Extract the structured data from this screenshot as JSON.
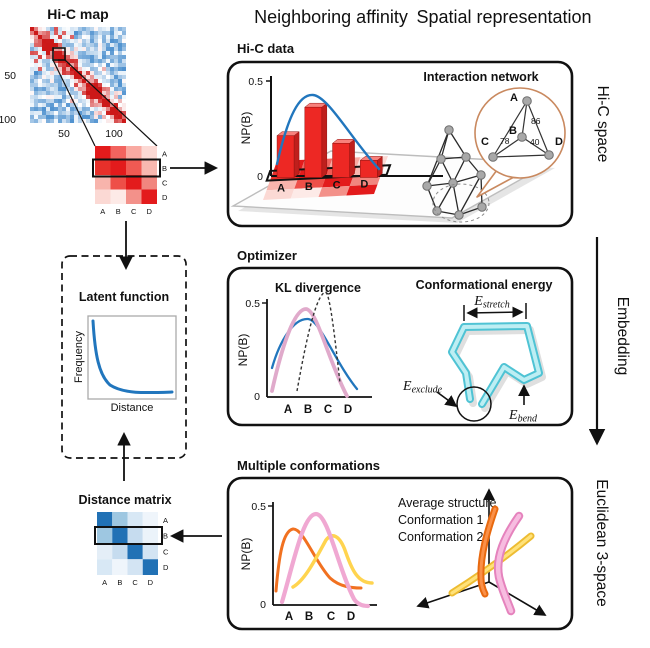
{
  "header": {
    "left": "Neighboring affinity",
    "right": "Spatial representation"
  },
  "side": {
    "top": "Hi-C space",
    "arrow_label": "Embedding",
    "bottom": "Euclidean 3-space"
  },
  "hic_map": {
    "title": "Hi-C map",
    "y_ticks": [
      "50",
      "100"
    ],
    "x_ticks": [
      "50",
      "100"
    ]
  },
  "red_matrix": {
    "row_labels": [
      "A",
      "B",
      "C",
      "D"
    ],
    "col_labels": [
      "A",
      "B",
      "C",
      "D"
    ],
    "highlighted_row": "B",
    "cells": [
      [
        "#e31b1c",
        "#f2645f",
        "#f9aaa2",
        "#fcd9d4"
      ],
      [
        "#e8302a",
        "#e31b1c",
        "#f05a53",
        "#f8b8b0"
      ],
      [
        "#f8b4ac",
        "#ee4f48",
        "#e31b1c",
        "#f1867f"
      ],
      [
        "#fbd9d4",
        "#fdeae7",
        "#f3918a",
        "#e31b1c"
      ]
    ]
  },
  "blue_matrix": {
    "title": "Distance matrix",
    "row_labels": [
      "A",
      "B",
      "C",
      "D"
    ],
    "col_labels": [
      "A",
      "B",
      "C",
      "D"
    ],
    "highlighted_row": "B",
    "cells": [
      [
        "#2171b5",
        "#9ec7e1",
        "#d8e8f5",
        "#eff5fb"
      ],
      [
        "#9ec7e1",
        "#2171b5",
        "#c6dcef",
        "#ebf3fa"
      ],
      [
        "#e4eef7",
        "#c6dcef",
        "#2171b5",
        "#d3e4f3"
      ],
      [
        "#d8e8f5",
        "#eff5fb",
        "#d3e4f3",
        "#2171b5"
      ]
    ]
  },
  "latent": {
    "title": "Latent function",
    "xlabel": "Distance",
    "ylabel": "Frequency"
  },
  "box1": {
    "label": "Hi-C data",
    "chart": {
      "ylabel": "NP(B)",
      "ymax_label": "0.5",
      "ymin_label": "0",
      "categories": [
        "A",
        "B",
        "C",
        "D"
      ]
    },
    "network": {
      "title": "Interaction network",
      "zoom_labels": [
        "A",
        "B",
        "C",
        "D"
      ],
      "weights": [
        {
          "pair": "A-B",
          "value": "86"
        },
        {
          "pair": "C-B",
          "value": "78"
        },
        {
          "pair": "B-D",
          "value": "40"
        }
      ]
    }
  },
  "box2": {
    "label": "Optimizer",
    "kl": {
      "title": "KL divergence",
      "ylabel": "NP(B)",
      "ymax_label": "0.5",
      "ymin_label": "0",
      "categories": [
        "A",
        "B",
        "C",
        "D"
      ]
    },
    "energy": {
      "title": "Conformational energy",
      "stretch": {
        "main": "E",
        "sub": "stretch"
      },
      "exclude": {
        "main": "E",
        "sub": "exclude"
      },
      "bend": {
        "main": "E",
        "sub": "bend"
      }
    }
  },
  "box3": {
    "label": "Multiple conformations",
    "plot": {
      "ylabel": "NP(B)",
      "ymax_label": "0.5",
      "ymin_label": "0",
      "categories": [
        "A",
        "B",
        "C",
        "D"
      ]
    },
    "legend": [
      {
        "label": "Average structure",
        "color": "#f292c8"
      },
      {
        "label": "Conformation 1",
        "color": "#f2701d"
      },
      {
        "label": "Conformation 2",
        "color": "#ffd24f"
      }
    ]
  },
  "colors": {
    "curve_blue": "#2176bd",
    "curve_pink": "#e0aacb",
    "bar_red": "#ed2824",
    "polymer_cyan": "#4fc3d4",
    "bubble_orange": "#c9895f"
  },
  "chart_data": [
    {
      "type": "bar",
      "title": "Hi-C data neighboring-probability histogram",
      "categories": [
        "A",
        "B",
        "C",
        "D"
      ],
      "values": [
        0.22,
        0.37,
        0.18,
        0.09
      ],
      "ylabel": "NP(B)",
      "ylim": [
        0,
        0.5
      ],
      "overlay": "smooth gaussian-like blue curve peaking near B"
    },
    {
      "type": "line",
      "title": "KL divergence",
      "categories": [
        "A",
        "B",
        "C",
        "D"
      ],
      "ylabel": "NP(B)",
      "ylim": [
        0,
        0.5
      ],
      "series": [
        {
          "name": "blue curve",
          "values": [
            0.15,
            0.4,
            0.25,
            0.05
          ]
        },
        {
          "name": "pink curve",
          "values": [
            0.1,
            0.45,
            0.2,
            0.01
          ]
        },
        {
          "name": "dashed curve",
          "values": [
            0.02,
            0.3,
            0.55,
            0.05
          ]
        }
      ]
    },
    {
      "type": "line",
      "title": "Multiple conformations",
      "categories": [
        "A",
        "B",
        "C",
        "D"
      ],
      "ylabel": "NP(B)",
      "ylim": [
        0,
        0.5
      ],
      "series": [
        {
          "name": "Average structure",
          "values": [
            0.1,
            0.45,
            0.15,
            0.01
          ]
        },
        {
          "name": "Conformation 1",
          "values": [
            0.33,
            0.3,
            0.08,
            0.02
          ]
        },
        {
          "name": "Conformation 2",
          "values": [
            0.05,
            0.12,
            0.33,
            0.08
          ]
        }
      ]
    },
    {
      "type": "line",
      "title": "Latent function",
      "xlabel": "Distance",
      "ylabel": "Frequency",
      "shape": "monotonic exponential decay"
    }
  ]
}
